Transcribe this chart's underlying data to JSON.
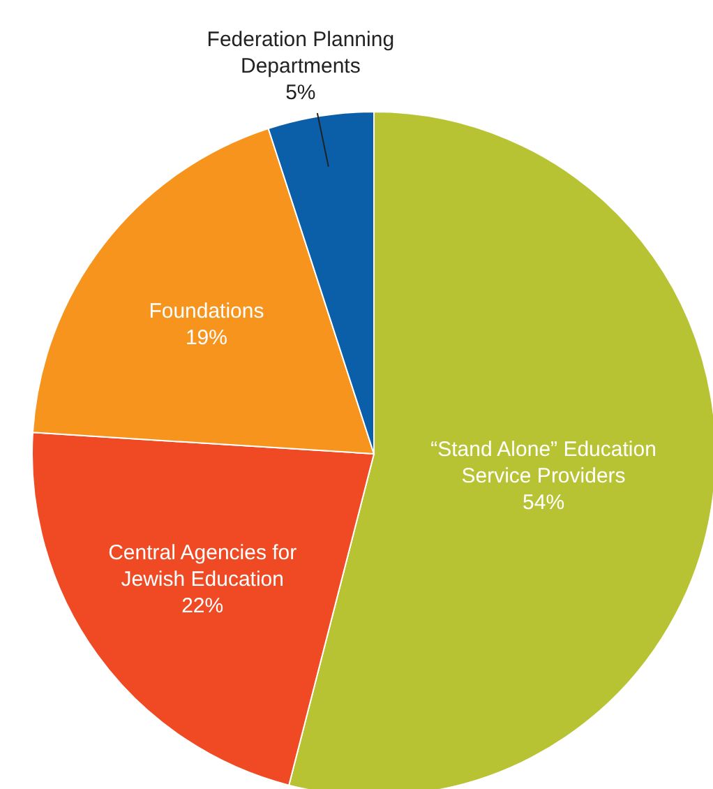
{
  "chart_data": {
    "type": "pie",
    "categories": [
      "“Stand Alone” Education Service Providers",
      "Central Agencies for Jewish Education",
      "Foundations",
      "Federation Planning Departments"
    ],
    "values": [
      54,
      22,
      19,
      5
    ],
    "value_labels": [
      "54%",
      "22%",
      "19%",
      "5%"
    ],
    "colors": [
      "#b8c334",
      "#ef4a23",
      "#f7941d",
      "#0b5ea8"
    ]
  }
}
